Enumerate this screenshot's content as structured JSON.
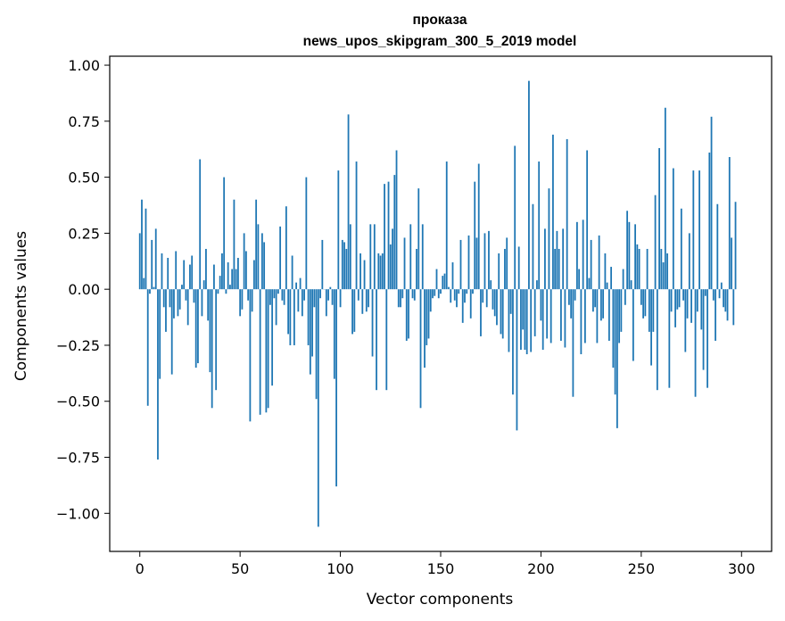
{
  "chart_data": {
    "type": "bar",
    "title_line1": "проказа",
    "title_line2": "news_upos_skipgram_300_5_2019 model",
    "xlabel": "Vector components",
    "ylabel": "Components values",
    "xlim": [
      -15,
      315
    ],
    "ylim": [
      -1.17,
      1.04
    ],
    "xticks": [
      0,
      50,
      100,
      150,
      200,
      250,
      300
    ],
    "xtick_labels": [
      "0",
      "50",
      "100",
      "150",
      "200",
      "250",
      "300"
    ],
    "yticks": [
      1.0,
      0.75,
      0.5,
      0.25,
      0.0,
      -0.25,
      -0.5,
      -0.75,
      -1.0
    ],
    "ytick_labels": [
      "1.00",
      "0.75",
      "0.50",
      "0.25",
      "0.00",
      "−0.25",
      "−0.50",
      "−0.75",
      "−1.00"
    ],
    "bar_color": "#1f77b4",
    "bar_width": 0.8,
    "x_start": 0,
    "values": [
      0.25,
      0.4,
      0.05,
      0.36,
      -0.52,
      -0.02,
      0.22,
      0.01,
      0.27,
      -0.76,
      -0.4,
      0.16,
      -0.08,
      -0.19,
      0.14,
      -0.08,
      -0.38,
      -0.13,
      0.17,
      -0.12,
      -0.09,
      0.02,
      0.13,
      -0.05,
      -0.16,
      0.11,
      0.15,
      -0.06,
      -0.35,
      -0.33,
      0.58,
      -0.12,
      0.04,
      0.18,
      -0.14,
      -0.37,
      -0.53,
      0.11,
      -0.45,
      -0.02,
      0.06,
      0.16,
      0.5,
      -0.02,
      0.12,
      0.02,
      0.09,
      0.4,
      0.09,
      0.14,
      -0.12,
      -0.09,
      0.25,
      0.17,
      -0.05,
      -0.59,
      -0.1,
      0.13,
      0.4,
      0.29,
      -0.56,
      0.25,
      0.21,
      -0.55,
      -0.53,
      -0.07,
      -0.43,
      -0.04,
      -0.16,
      -0.02,
      0.28,
      -0.05,
      -0.07,
      0.37,
      -0.2,
      -0.25,
      0.15,
      -0.25,
      0.03,
      -0.1,
      0.05,
      -0.12,
      -0.05,
      0.5,
      -0.25,
      -0.38,
      -0.3,
      -0.08,
      -0.49,
      -1.06,
      -0.04,
      0.22,
      0.0,
      -0.12,
      -0.05,
      0.01,
      -0.07,
      -0.4,
      -0.88,
      0.53,
      -0.08,
      0.22,
      0.21,
      0.18,
      0.78,
      0.29,
      -0.2,
      -0.19,
      0.57,
      -0.05,
      0.16,
      -0.11,
      0.13,
      -0.1,
      -0.08,
      0.29,
      -0.3,
      0.29,
      -0.45,
      0.16,
      0.15,
      0.16,
      0.47,
      -0.45,
      0.48,
      0.2,
      0.27,
      0.51,
      0.62,
      -0.08,
      -0.08,
      -0.04,
      0.23,
      -0.23,
      -0.22,
      0.29,
      -0.04,
      -0.05,
      0.18,
      0.45,
      -0.53,
      0.29,
      -0.35,
      -0.25,
      -0.22,
      -0.1,
      -0.04,
      -0.03,
      0.09,
      -0.04,
      -0.02,
      0.06,
      0.07,
      0.57,
      0.01,
      -0.06,
      0.12,
      -0.05,
      -0.08,
      -0.02,
      0.22,
      -0.15,
      -0.06,
      -0.02,
      0.24,
      -0.13,
      -0.02,
      0.48,
      0.23,
      0.56,
      -0.21,
      -0.06,
      0.25,
      -0.08,
      0.26,
      0.04,
      -0.09,
      -0.12,
      -0.16,
      0.16,
      -0.2,
      -0.22,
      0.18,
      0.23,
      -0.28,
      -0.11,
      -0.47,
      0.64,
      -0.63,
      0.19,
      -0.27,
      -0.18,
      -0.27,
      -0.29,
      0.93,
      -0.28,
      0.38,
      -0.21,
      0.04,
      0.57,
      -0.14,
      -0.27,
      0.27,
      -0.22,
      0.45,
      -0.24,
      0.69,
      0.18,
      0.26,
      0.18,
      -0.23,
      0.27,
      -0.26,
      0.67,
      -0.07,
      -0.13,
      -0.48,
      -0.05,
      0.3,
      0.09,
      -0.29,
      0.31,
      -0.24,
      0.62,
      0.05,
      0.22,
      -0.1,
      -0.08,
      -0.24,
      0.24,
      -0.14,
      -0.13,
      0.16,
      0.03,
      -0.23,
      0.1,
      -0.35,
      -0.47,
      -0.62,
      -0.24,
      -0.19,
      0.09,
      -0.07,
      0.35,
      0.3,
      0.04,
      -0.32,
      0.29,
      0.2,
      0.18,
      -0.07,
      -0.13,
      -0.12,
      0.18,
      -0.19,
      -0.34,
      -0.19,
      0.42,
      -0.45,
      0.63,
      0.18,
      0.12,
      0.81,
      0.16,
      -0.44,
      -0.1,
      0.54,
      -0.17,
      -0.09,
      -0.08,
      0.36,
      -0.05,
      -0.28,
      -0.13,
      0.25,
      -0.15,
      0.53,
      -0.48,
      -0.1,
      0.53,
      -0.18,
      -0.36,
      -0.03,
      -0.44,
      0.61,
      0.77,
      -0.05,
      -0.23,
      0.38,
      -0.04,
      0.03,
      -0.08,
      -0.1,
      -0.14,
      0.59,
      0.23,
      -0.16,
      0.39
    ]
  }
}
